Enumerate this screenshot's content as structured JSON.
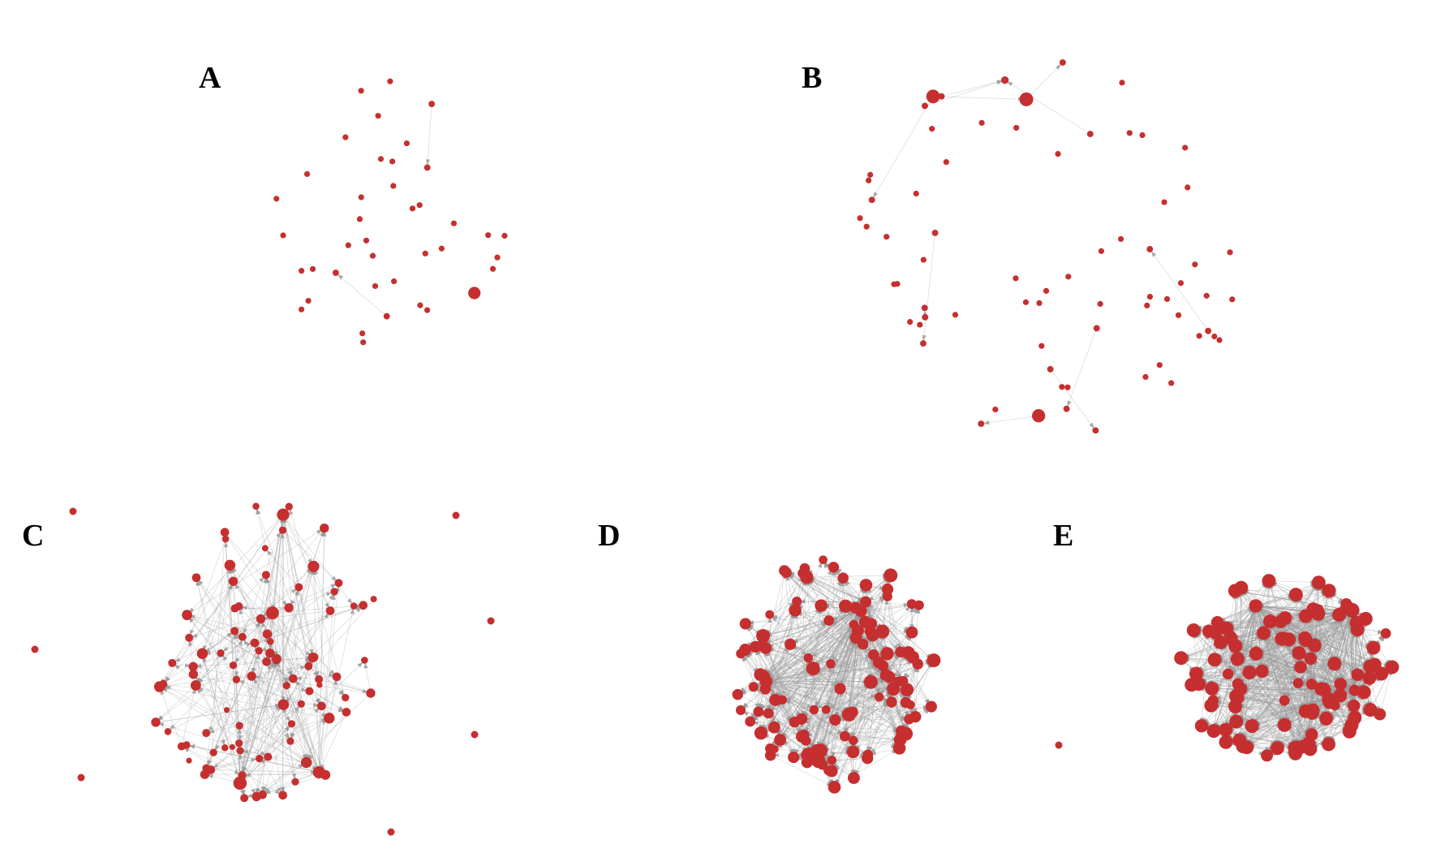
{
  "panels": [
    {
      "id": "A",
      "label": "A",
      "seed": 11,
      "nodes": 40,
      "edges": 8,
      "hubs": 1
    },
    {
      "id": "B",
      "label": "B",
      "seed": 23,
      "nodes": 70,
      "edges": 55,
      "hubs": 3
    },
    {
      "id": "C",
      "label": "C",
      "seed": 37,
      "nodes": 95,
      "edges": 260,
      "hubs": 4
    },
    {
      "id": "D",
      "label": "D",
      "seed": 41,
      "nodes": 120,
      "edges": 700,
      "hubs": 3
    },
    {
      "id": "E",
      "label": "E",
      "seed": 53,
      "nodes": 110,
      "edges": 1100,
      "hubs": 3
    }
  ],
  "colors": {
    "node": "#c62f2f",
    "edge": "#9a9a9a",
    "label": "#000000",
    "background": "#ffffff"
  }
}
